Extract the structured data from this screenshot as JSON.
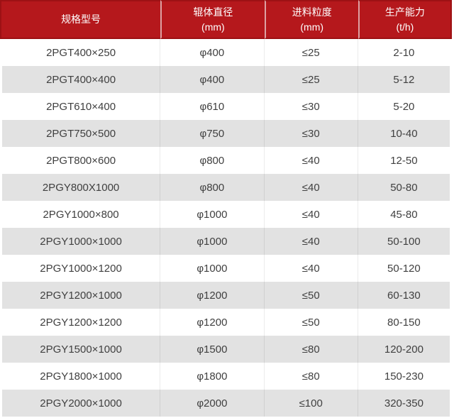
{
  "colors": {
    "header_bg": "#b5181c",
    "header_border": "#9d1114",
    "header_divider": "#dda1a3",
    "header_text": "#ffffff",
    "row_bg": "#ffffff",
    "row_alt_bg": "#e2e2e2",
    "body_text": "#404040",
    "cell_divider": "#ebebeb"
  },
  "chart_data": {
    "type": "table",
    "columns": [
      {
        "label": "规格型号",
        "unit": ""
      },
      {
        "label": "辊体直径",
        "unit": "(mm)"
      },
      {
        "label": "进料粒度",
        "unit": "(mm)"
      },
      {
        "label": "生产能力",
        "unit": "(t/h)"
      }
    ],
    "rows": [
      [
        "2PGT400×250",
        "φ400",
        "≤25",
        "2-10"
      ],
      [
        "2PGT400×400",
        "φ400",
        "≤25",
        "5-12"
      ],
      [
        "2PGT610×400",
        "φ610",
        "≤30",
        "5-20"
      ],
      [
        "2PGT750×500",
        "φ750",
        "≤30",
        "10-40"
      ],
      [
        "2PGT800×600",
        "φ800",
        "≤40",
        "12-50"
      ],
      [
        "2PGY800X1000",
        "φ800",
        "≤40",
        "50-80"
      ],
      [
        "2PGY1000×800",
        "φ1000",
        "≤40",
        "45-80"
      ],
      [
        "2PGY1000×1000",
        "φ1000",
        "≤40",
        "50-100"
      ],
      [
        "2PGY1000×1200",
        "φ1000",
        "≤40",
        "50-120"
      ],
      [
        "2PGY1200×1000",
        "φ1200",
        "≤50",
        "60-130"
      ],
      [
        "2PGY1200×1200",
        "φ1200",
        "≤50",
        "80-150"
      ],
      [
        "2PGY1500×1000",
        "φ1500",
        "≤80",
        "120-200"
      ],
      [
        "2PGY1800×1000",
        "φ1800",
        "≤80",
        "150-230"
      ],
      [
        "2PGY2000×1000",
        "φ2000",
        "≤100",
        "320-350"
      ]
    ]
  }
}
